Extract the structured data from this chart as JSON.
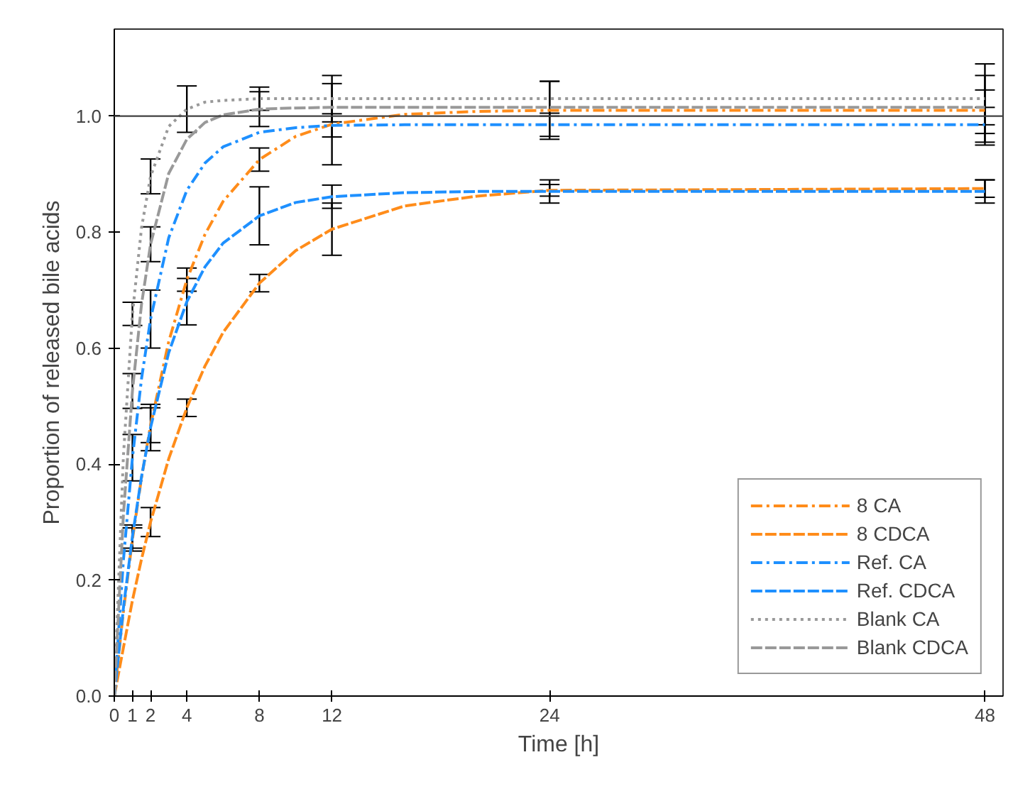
{
  "chart_data": {
    "type": "line",
    "xlabel": "Time [h]",
    "ylabel": "Proportion of released bile acids",
    "x": [
      0,
      0.5,
      1,
      1.5,
      2,
      3,
      4,
      5,
      6,
      8,
      10,
      12,
      16,
      20,
      24,
      48
    ],
    "xlim": [
      0,
      49
    ],
    "xticks": [
      0,
      1,
      2,
      4,
      8,
      12,
      24,
      48
    ],
    "ylim": [
      0,
      1.15
    ],
    "yticks": [
      {
        "value": 0,
        "label": "0.0"
      },
      0.2,
      0.4,
      0.6,
      0.8,
      {
        "value": 1,
        "label": "1.0"
      }
    ],
    "legend": "bottom right",
    "grid": false,
    "ref_lines": [
      {
        "axis": "y",
        "value": 1.0,
        "color": "#404040"
      }
    ],
    "series": [
      {
        "name": "8 CA",
        "color": "#ff8c1a",
        "line_style": "dashdot",
        "values": [
          0,
          0.145,
          0.27,
          0.376,
          0.467,
          0.611,
          0.718,
          0.796,
          0.853,
          0.925,
          0.965,
          0.986,
          1.003,
          1.008,
          1.01,
          1.01
        ],
        "errors": [
          null,
          null,
          0.02,
          null,
          0.03,
          null,
          0.02,
          null,
          null,
          0.02,
          null,
          0.07,
          null,
          null,
          0.05,
          0.06
        ]
      },
      {
        "name": "8 CDCA",
        "color": "#ff8c1a",
        "line_style": "dashed",
        "values": [
          0,
          0.083,
          0.165,
          0.236,
          0.3,
          0.409,
          0.497,
          0.569,
          0.627,
          0.712,
          0.768,
          0.805,
          0.845,
          0.862,
          0.872,
          0.875
        ],
        "errors": [
          null,
          null,
          null,
          null,
          0.025,
          null,
          0.015,
          null,
          null,
          0.015,
          null,
          0.045,
          null,
          null,
          0.01,
          0.015
        ]
      },
      {
        "name": "Ref. CA",
        "color": "#1e90ff",
        "line_style": "dashdot",
        "values": [
          0,
          0.233,
          0.411,
          0.547,
          0.65,
          0.79,
          0.872,
          0.919,
          0.947,
          0.972,
          0.98,
          0.984,
          0.985,
          0.985,
          0.985,
          0.985
        ],
        "errors": [
          null,
          null,
          0.04,
          null,
          0.05,
          null,
          null,
          null,
          null,
          null,
          null,
          0.02,
          null,
          null,
          0.02,
          0.03
        ]
      },
      {
        "name": "Ref. CDCA",
        "color": "#1e90ff",
        "line_style": "dashed",
        "values": [
          0,
          0.151,
          0.275,
          0.378,
          0.463,
          0.592,
          0.68,
          0.74,
          0.781,
          0.828,
          0.851,
          0.861,
          0.868,
          0.87,
          0.87,
          0.87
        ],
        "errors": [
          null,
          null,
          0.02,
          null,
          0.04,
          null,
          0.04,
          null,
          null,
          0.05,
          null,
          0.02,
          null,
          null,
          0.02,
          0.02
        ]
      },
      {
        "name": "Blank CA",
        "color": "#999999",
        "line_style": "dotted",
        "values": [
          0,
          0.412,
          0.659,
          0.807,
          0.896,
          0.982,
          1.012,
          1.024,
          1.027,
          1.03,
          1.03,
          1.03,
          1.03,
          1.03,
          1.03,
          1.03
        ],
        "errors": [
          null,
          null,
          0.02,
          null,
          0.03,
          null,
          0.04,
          null,
          null,
          0.02,
          null,
          0.04,
          null,
          null,
          0.03,
          0.06
        ]
      },
      {
        "name": "Blank CDCA",
        "color": "#999999",
        "line_style": "dashed",
        "values": [
          0,
          0.311,
          0.526,
          0.675,
          0.779,
          0.901,
          0.96,
          0.989,
          1.002,
          1.012,
          1.014,
          1.015,
          1.015,
          1.015,
          1.015,
          1.015
        ],
        "errors": [
          null,
          null,
          0.03,
          null,
          0.03,
          null,
          null,
          null,
          null,
          0.03,
          null,
          null,
          null,
          null,
          null,
          0.03
        ]
      }
    ]
  }
}
